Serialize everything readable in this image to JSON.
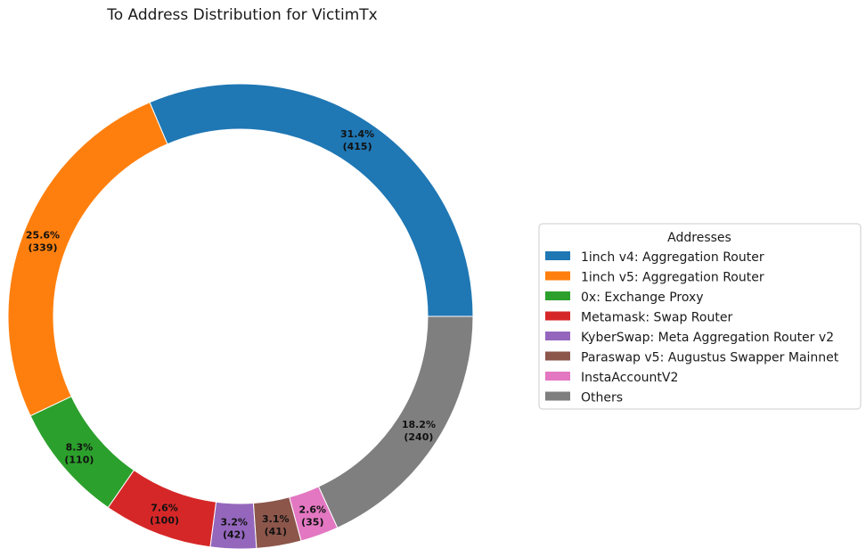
{
  "chart_data": {
    "type": "pie",
    "title": "To Address Distribution for VictimTx",
    "legend_title": "Addresses",
    "legend_placement": "right",
    "donut": true,
    "slices": [
      {
        "label": "1inch v4: Aggregation Router",
        "pct_label": "31.4%",
        "value": 415,
        "count_label": "(415)",
        "color": "#1f77b4"
      },
      {
        "label": "1inch v5: Aggregation Router",
        "pct_label": "25.6%",
        "value": 339,
        "count_label": "(339)",
        "color": "#ff7f0e"
      },
      {
        "label": "0x: Exchange Proxy",
        "pct_label": "8.3%",
        "value": 110,
        "count_label": "(110)",
        "color": "#2ca02c"
      },
      {
        "label": "Metamask: Swap Router",
        "pct_label": "7.6%",
        "value": 100,
        "count_label": "(100)",
        "color": "#d62728"
      },
      {
        "label": "KyberSwap: Meta Aggregation Router v2",
        "pct_label": "3.2%",
        "value": 42,
        "count_label": "(42)",
        "color": "#9467bd"
      },
      {
        "label": "Paraswap v5: Augustus Swapper Mainnet",
        "pct_label": "3.1%",
        "value": 41,
        "count_label": "(41)",
        "color": "#8c564b"
      },
      {
        "label": "InstaAccountV2",
        "pct_label": "2.6%",
        "value": 35,
        "count_label": "(35)",
        "color": "#e377c2"
      },
      {
        "label": "Others",
        "pct_label": "18.2%",
        "value": 240,
        "count_label": "(240)",
        "color": "#7f7f7f"
      }
    ]
  }
}
